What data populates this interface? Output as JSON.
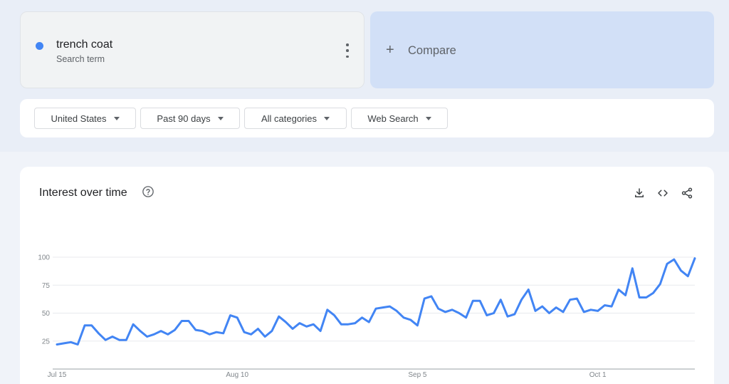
{
  "search_term": {
    "name": "trench coat",
    "subtitle": "Search term",
    "color": "#4285f4",
    "menu_icon": "more-vert-icon"
  },
  "compare": {
    "icon": "plus-icon",
    "label": "Compare"
  },
  "filters": [
    {
      "label": "United States",
      "icon": "caret-down-icon"
    },
    {
      "label": "Past 90 days",
      "icon": "caret-down-icon"
    },
    {
      "label": "All categories",
      "icon": "caret-down-icon"
    },
    {
      "label": "Web Search",
      "icon": "caret-down-icon"
    }
  ],
  "chart_card": {
    "title": "Interest over time",
    "help_icon": "help-circle-icon",
    "actions": [
      "download-icon",
      "embed-code-icon",
      "share-icon"
    ]
  },
  "chart_data": {
    "type": "line",
    "title": "Interest over time",
    "xlabel": "",
    "ylabel": "",
    "ylim": [
      0,
      100
    ],
    "y_ticks": [
      25,
      50,
      75,
      100
    ],
    "x_tick_labels": [
      {
        "label": "Jul 15",
        "index": 0
      },
      {
        "label": "Aug 10",
        "index": 26
      },
      {
        "label": "Sep 5",
        "index": 52
      },
      {
        "label": "Oct 1",
        "index": 78
      }
    ],
    "grid": true,
    "legend": "none",
    "series": [
      {
        "color": "#4285f4",
        "values": [
          22,
          23,
          24,
          22,
          39,
          39,
          32,
          26,
          29,
          26,
          26,
          40,
          34,
          29,
          31,
          34,
          31,
          35,
          43,
          43,
          35,
          34,
          31,
          33,
          32,
          48,
          46,
          33,
          31,
          36,
          29,
          34,
          47,
          42,
          36,
          41,
          38,
          40,
          34,
          53,
          48,
          40,
          40,
          41,
          46,
          42,
          54,
          55,
          56,
          52,
          46,
          44,
          39,
          63,
          65,
          54,
          51,
          53,
          50,
          46,
          61,
          61,
          48,
          50,
          62,
          47,
          49,
          62,
          71,
          52,
          56,
          50,
          55,
          51,
          62,
          63,
          51,
          53,
          52,
          57,
          56,
          71,
          66,
          90,
          64,
          64,
          68,
          76,
          94,
          98,
          88,
          83,
          99
        ]
      }
    ]
  }
}
